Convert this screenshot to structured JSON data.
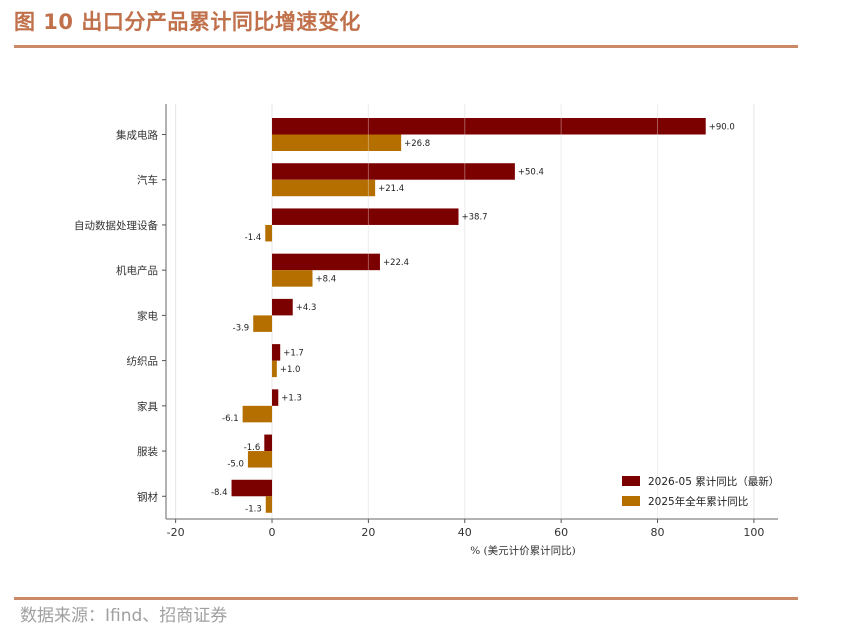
{
  "header": {
    "title": "图 10 出口分产品累计同比增速变化"
  },
  "footer": {
    "source": "数据来源：Ifind、招商证券"
  },
  "chart_data": {
    "type": "bar",
    "orientation": "horizontal",
    "categories": [
      "集成电路",
      "汽车",
      "自动数据处理设备",
      "机电产品",
      "家电",
      "纺织品",
      "家具",
      "服装",
      "钢材"
    ],
    "series": [
      {
        "name": "2026-05 累计同比（最新）",
        "color": "#7b0000",
        "values": [
          90.0,
          50.4,
          38.7,
          22.4,
          4.3,
          1.7,
          1.3,
          -1.6,
          -8.4
        ],
        "labels": [
          "+90.0",
          "+50.4",
          "+38.7",
          "+22.4",
          "+4.3",
          "+1.7",
          "+1.3",
          "-1.6",
          "-8.4"
        ]
      },
      {
        "name": "2025年全年累计同比",
        "color": "#b56e00",
        "values": [
          26.8,
          21.4,
          -1.4,
          8.4,
          -3.9,
          1.0,
          -6.1,
          -5.0,
          -1.3
        ],
        "labels": [
          "+26.8",
          "+21.4",
          "-1.4",
          "+8.4",
          "-3.9",
          "+1.0",
          "-6.1",
          "-5.0",
          "-1.3"
        ]
      }
    ],
    "xlabel": "% (美元计价累计同比)",
    "xlim": [
      -22,
      105
    ],
    "xticks": [
      -20,
      0,
      20,
      40,
      60,
      80,
      100
    ],
    "grid": "vertical",
    "legend_position": "bottom-right"
  }
}
